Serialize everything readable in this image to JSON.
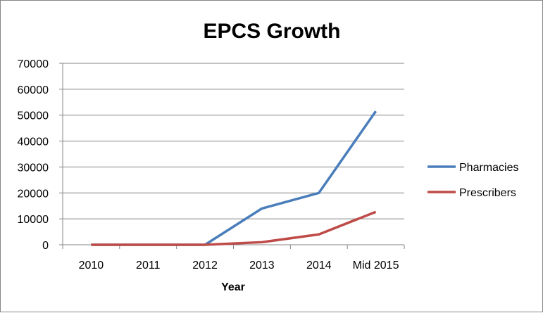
{
  "chart_data": {
    "type": "line",
    "title": "EPCS Growth",
    "xlabel": "Year",
    "ylabel": "",
    "categories": [
      "2010",
      "2011",
      "2012",
      "2013",
      "2014",
      "Mid 2015"
    ],
    "ylim": [
      0,
      70000
    ],
    "yticks": [
      0,
      10000,
      20000,
      30000,
      40000,
      50000,
      60000,
      70000
    ],
    "grid": true,
    "legend_position": "right",
    "series": [
      {
        "name": "Pharmacies",
        "color": "#4a7ebb",
        "values": [
          0,
          0,
          0,
          14000,
          20000,
          51500
        ]
      },
      {
        "name": "Prescribers",
        "color": "#be4b48",
        "values": [
          0,
          0,
          0,
          1000,
          4000,
          12700
        ]
      }
    ]
  }
}
